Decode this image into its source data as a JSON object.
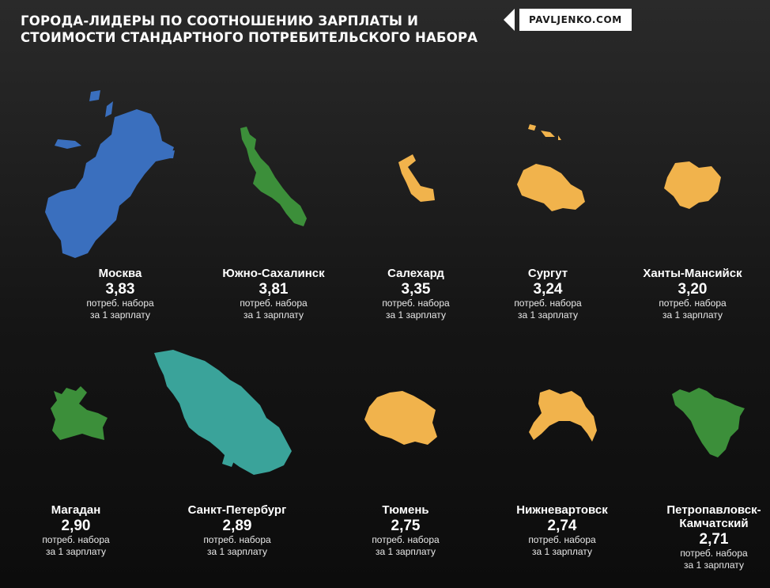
{
  "header": {
    "title": "ГОРОДА-ЛИДЕРЫ ПО СООТНОШЕНИЮ ЗАРПЛАТЫ И СТОИМОСТИ СТАНДАРТНОГО ПОТРЕБИТЕЛЬСКОГО НАБОРА",
    "brand": "PAVLJENKO.COM"
  },
  "colors": {
    "blue": "#3a6fbe",
    "green": "#3c8f3a",
    "orange": "#f1b34c",
    "teal": "#3aa39a"
  },
  "cities": [
    {
      "name": "Москва",
      "value": "3,83",
      "caption_line1": "потреб. набора",
      "caption_line2": "за 1 зарплату",
      "color": "blue"
    },
    {
      "name": "Южно-Сахалинск",
      "value": "3,81",
      "caption_line1": "потреб. набора",
      "caption_line2": "за 1 зарплату",
      "color": "green"
    },
    {
      "name": "Салехард",
      "value": "3,35",
      "caption_line1": "потреб. набора",
      "caption_line2": "за 1 зарплату",
      "color": "orange"
    },
    {
      "name": "Сургут",
      "value": "3,24",
      "caption_line1": "потреб. набора",
      "caption_line2": "за 1 зарплату",
      "color": "orange"
    },
    {
      "name": "Ханты-Мансийск",
      "value": "3,20",
      "caption_line1": "потреб. набора",
      "caption_line2": "за 1 зарплату",
      "color": "orange"
    },
    {
      "name": "Магадан",
      "value": "2,90",
      "caption_line1": "потреб. набора",
      "caption_line2": "за 1 зарплату",
      "color": "green"
    },
    {
      "name": "Санкт-Петербург",
      "value": "2,89",
      "caption_line1": "потреб. набора",
      "caption_line2": "за 1 зарплату",
      "color": "teal"
    },
    {
      "name": "Тюмень",
      "value": "2,75",
      "caption_line1": "потреб. набора",
      "caption_line2": "за 1 зарплату",
      "color": "orange"
    },
    {
      "name": "Нижневартовск",
      "value": "2,74",
      "caption_line1": "потреб. набора",
      "caption_line2": "за 1 зарплату",
      "color": "orange"
    },
    {
      "name": "Петропавловск-Камчатский",
      "name_line1": "Петропавловск-",
      "name_line2": "Камчатский",
      "value": "2,71",
      "caption_line1": "потреб. набора",
      "caption_line2": "за 1 зарплату",
      "color": "green"
    }
  ]
}
